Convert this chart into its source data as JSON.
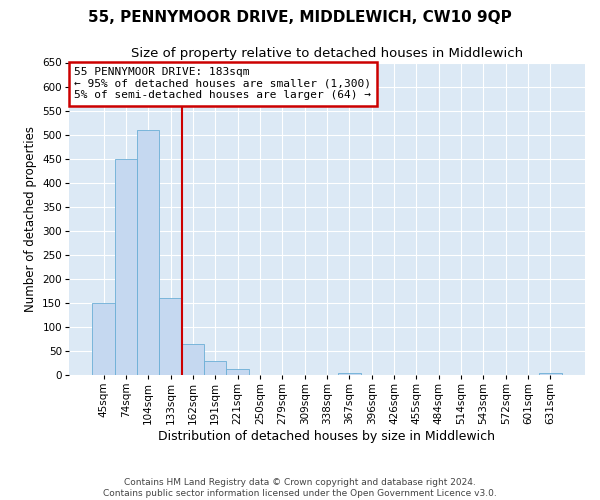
{
  "title": "55, PENNYMOOR DRIVE, MIDDLEWICH, CW10 9QP",
  "subtitle": "Size of property relative to detached houses in Middlewich",
  "xlabel": "Distribution of detached houses by size in Middlewich",
  "ylabel": "Number of detached properties",
  "footer_line1": "Contains HM Land Registry data © Crown copyright and database right 2024.",
  "footer_line2": "Contains public sector information licensed under the Open Government Licence v3.0.",
  "bin_labels": [
    "45sqm",
    "74sqm",
    "104sqm",
    "133sqm",
    "162sqm",
    "191sqm",
    "221sqm",
    "250sqm",
    "279sqm",
    "309sqm",
    "338sqm",
    "367sqm",
    "396sqm",
    "426sqm",
    "455sqm",
    "484sqm",
    "514sqm",
    "543sqm",
    "572sqm",
    "601sqm",
    "631sqm"
  ],
  "bar_values": [
    150,
    450,
    510,
    160,
    65,
    30,
    12,
    0,
    0,
    0,
    0,
    5,
    0,
    0,
    0,
    0,
    0,
    0,
    0,
    0,
    5
  ],
  "bar_color": "#c5d8f0",
  "bar_edge_color": "#6baed6",
  "vline_color": "#cc0000",
  "vline_pos": 3.5,
  "annotation_box_text": "55 PENNYMOOR DRIVE: 183sqm\n← 95% of detached houses are smaller (1,300)\n5% of semi-detached houses are larger (64) →",
  "annotation_box_color": "#cc0000",
  "ylim": [
    0,
    650
  ],
  "yticks": [
    0,
    50,
    100,
    150,
    200,
    250,
    300,
    350,
    400,
    450,
    500,
    550,
    600,
    650
  ],
  "fig_bg_color": "#ffffff",
  "plot_bg_color": "#dce9f5",
  "grid_color": "#ffffff",
  "title_fontsize": 11,
  "subtitle_fontsize": 9.5,
  "xlabel_fontsize": 9,
  "ylabel_fontsize": 8.5,
  "tick_fontsize": 7.5,
  "annot_fontsize": 8,
  "footer_fontsize": 6.5
}
